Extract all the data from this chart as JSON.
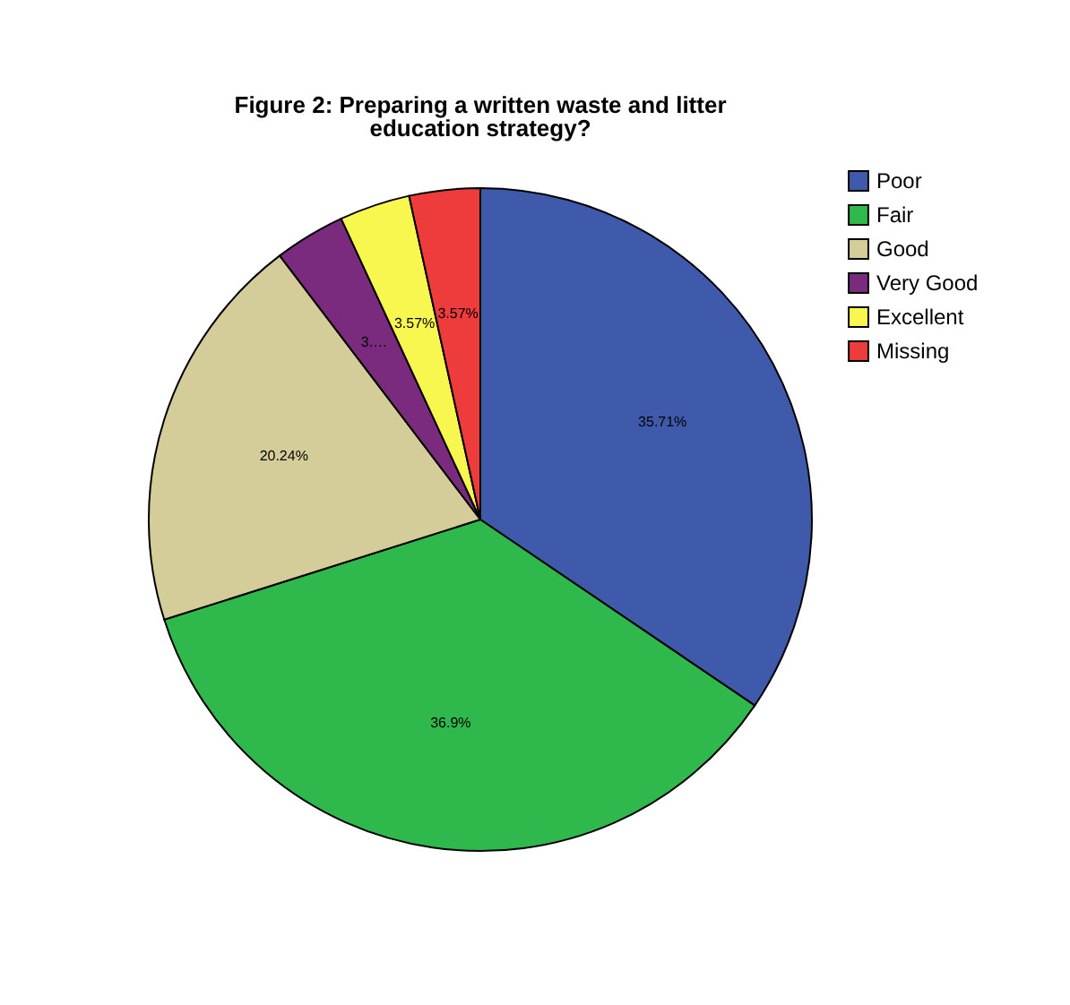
{
  "chart_data": {
    "type": "pie",
    "title": "Figure 2: Preparing a written waste and litter education strategy?",
    "categories": [
      "Poor",
      "Fair",
      "Good",
      "Very Good",
      "Excellent",
      "Missing"
    ],
    "values": [
      35.71,
      36.9,
      20.24,
      3.57,
      3.57,
      3.57
    ],
    "colors": [
      "#3f5aab",
      "#2fb84b",
      "#d4cd99",
      "#7b2b7e",
      "#f8f74f",
      "#ee3b3b"
    ],
    "value_labels": [
      "35.71%",
      "36.9%",
      "20.24%",
      "3.…",
      "3.57%",
      "3.57%"
    ],
    "legend": "top right"
  }
}
